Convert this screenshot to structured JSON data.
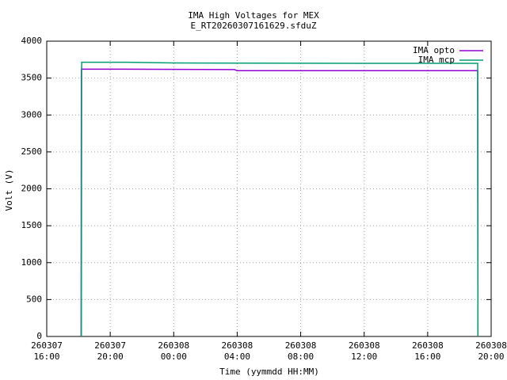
{
  "chart_data": {
    "type": "line",
    "title": "IMA High Voltages for MEX",
    "subtitle": "E_RT20260307161629.sfduZ",
    "x_label": "Time (yymmdd HH:MM)",
    "y_label": "Volt (V)",
    "series": [
      {
        "name": "IMA opto",
        "color": "#9400d3",
        "x": [
          "260307 18:10",
          "260307 18:11",
          "260307 21:00",
          "260308 03:50",
          "260308 04:00",
          "260308 12:00",
          "260308 19:09",
          "260308 19:10"
        ],
        "values": [
          0,
          3620,
          3620,
          3615,
          3600,
          3600,
          3600,
          0
        ]
      },
      {
        "name": "IMA mcp",
        "color": "#009e73",
        "x": [
          "260307 18:11",
          "260307 18:12",
          "260307 21:00",
          "260308 00:00",
          "260308 12:00",
          "260308 19:09",
          "260308 19:10"
        ],
        "values": [
          0,
          3715,
          3715,
          3705,
          3700,
          3700,
          0
        ]
      }
    ],
    "xlim": [
      "260307 16:00",
      "260308 20:00"
    ],
    "xticks": [
      {
        "value": "260307 16:00",
        "label": "260307\n16:00"
      },
      {
        "value": "260307 20:00",
        "label": "260307\n20:00"
      },
      {
        "value": "260308 00:00",
        "label": "260308\n00:00"
      },
      {
        "value": "260308 04:00",
        "label": "260308\n04:00"
      },
      {
        "value": "260308 08:00",
        "label": "260308\n08:00"
      },
      {
        "value": "260308 12:00",
        "label": "260308\n12:00"
      },
      {
        "value": "260308 16:00",
        "label": "260308\n16:00"
      },
      {
        "value": "260308 20:00",
        "label": "260308\n20:00"
      }
    ],
    "ylim": [
      0,
      4000
    ],
    "yticks": [
      0,
      500,
      1000,
      1500,
      2000,
      2500,
      3000,
      3500,
      4000
    ],
    "grid": true,
    "legend": "top-right"
  }
}
